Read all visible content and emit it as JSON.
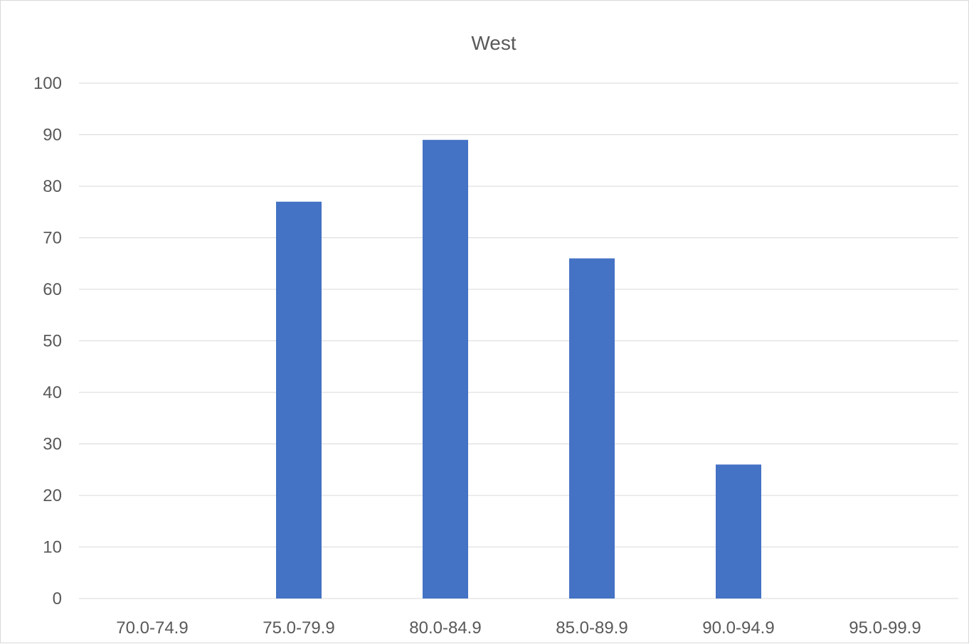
{
  "chart_data": {
    "type": "bar",
    "title": "West",
    "categories": [
      "70.0-74.9",
      "75.0-79.9",
      "80.0-84.9",
      "85.0-89.9",
      "90.0-94.9",
      "95.0-99.9"
    ],
    "values": [
      0,
      77,
      89,
      66,
      26,
      0
    ],
    "y_ticks": [
      "0",
      "10",
      "20",
      "30",
      "40",
      "50",
      "60",
      "70",
      "80",
      "90",
      "100"
    ],
    "ylim": [
      0,
      100
    ],
    "grid": true,
    "legend": "none",
    "colors": {
      "bar": "#4472C4",
      "grid": "#d9d9d9",
      "text": "#595959"
    }
  }
}
